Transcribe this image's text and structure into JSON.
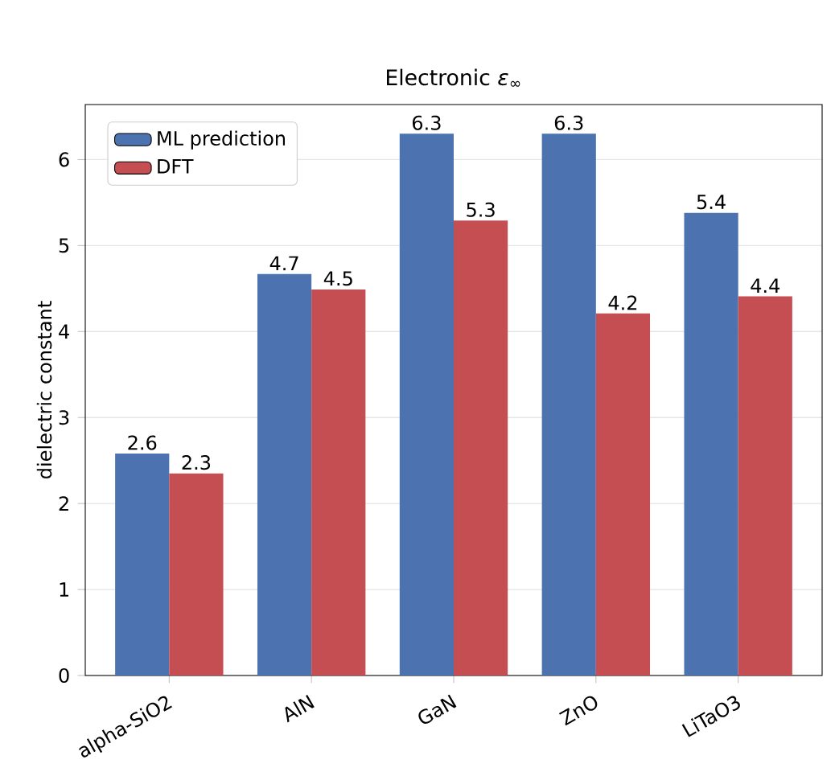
{
  "chart_data": {
    "type": "bar",
    "title": "Electronic  *ε*$_{∞}$",
    "ylabel": "dielectric constant",
    "categories": [
      "alpha-SiO2",
      "AlN",
      "GaN",
      "ZnO",
      "LiTaO3"
    ],
    "series": [
      {
        "name": "ML prediction",
        "color": "#4c72b0",
        "values": [
          2.58,
          4.67,
          6.3,
          6.3,
          5.38
        ],
        "value_labels": [
          "2.6",
          "4.7",
          "6.3",
          "6.3",
          "5.4"
        ]
      },
      {
        "name": "DFT",
        "color": "#c44e52",
        "values": [
          2.35,
          4.49,
          5.29,
          4.21,
          4.41
        ],
        "value_labels": [
          "2.3",
          "4.5",
          "5.3",
          "4.2",
          "4.4"
        ]
      }
    ],
    "ylim": [
      0,
      6.64
    ],
    "yticks": [
      0,
      1,
      2,
      3,
      4,
      5,
      6
    ],
    "grid": "y",
    "legend": "top left"
  }
}
